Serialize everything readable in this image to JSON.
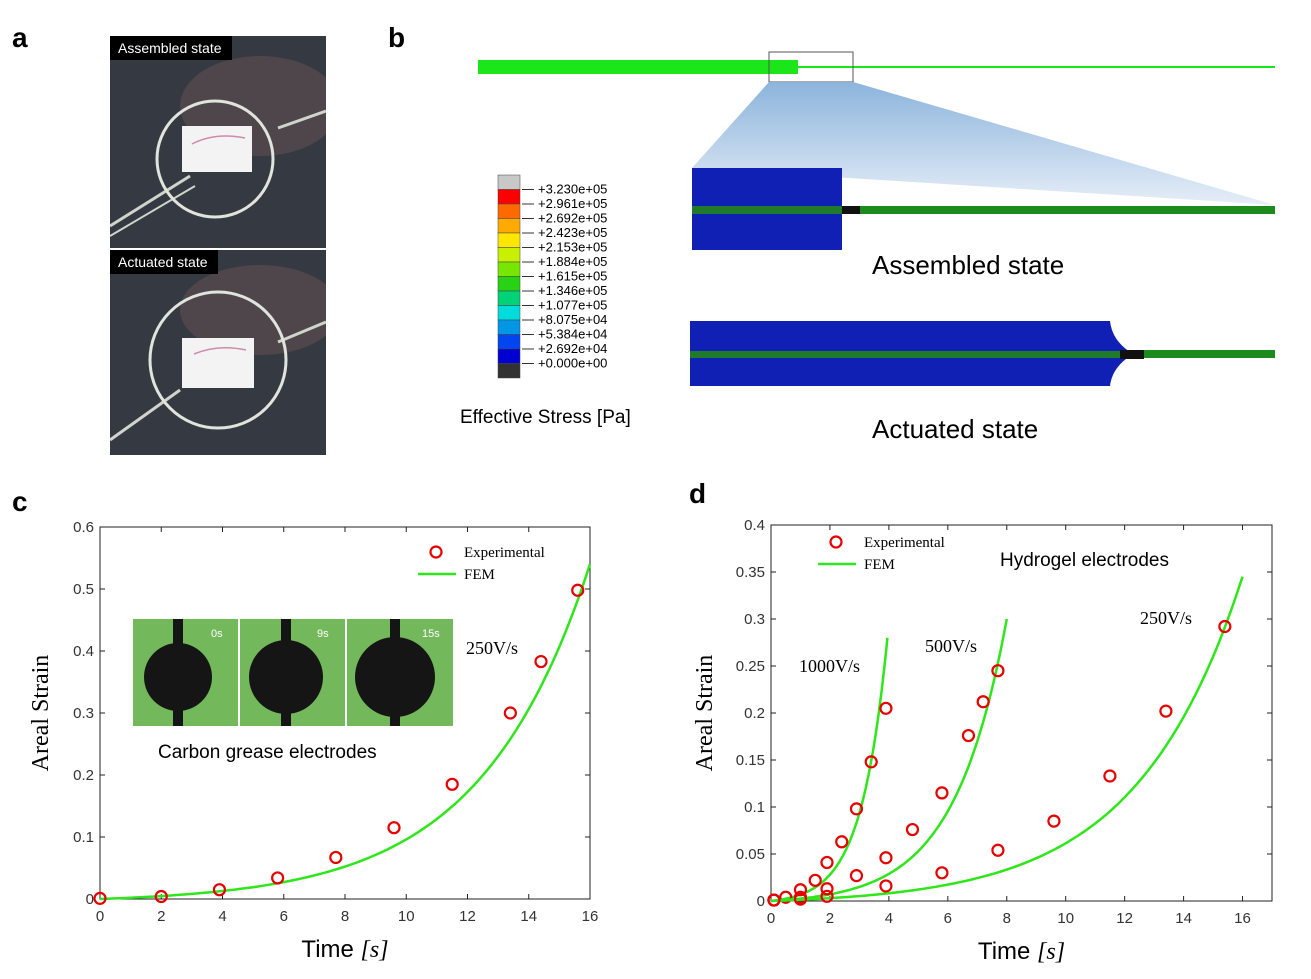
{
  "panel_letters": [
    "a",
    "b",
    "c",
    "d"
  ],
  "panel_a": {
    "photo_labels": [
      "Assembled state",
      "Actuated state"
    ]
  },
  "panel_b": {
    "legend_title": "Effective Stress [Pa]",
    "legend_values": [
      "+3.230e+05",
      "+2.961e+05",
      "+2.692e+05",
      "+2.423e+05",
      "+2.153e+05",
      "+1.884e+05",
      "+1.615e+05",
      "+1.346e+05",
      "+1.077e+05",
      "+8.075e+04",
      "+5.384e+04",
      "+2.692e+04",
      "+0.000e+00"
    ],
    "legend_colors": [
      "#c8c8c8",
      "#ff0000",
      "#ff6a00",
      "#ffaa00",
      "#ffe600",
      "#c8f000",
      "#78e600",
      "#28d214",
      "#00d278",
      "#00dcdc",
      "#0096e6",
      "#0046f0",
      "#0000d2",
      "#323232"
    ],
    "state_labels": [
      "Assembled state",
      "Actuated state"
    ]
  },
  "chart_data": [
    {
      "type": "scatter",
      "panel": "c",
      "xlabel_text": "Time ",
      "xlabel_math": "[s]",
      "ylabel": "Areal Strain",
      "xlim": [
        0,
        16
      ],
      "ylim": [
        0,
        0.6
      ],
      "x_ticks": [
        "0",
        "2",
        "4",
        "6",
        "8",
        "10",
        "12",
        "14",
        "16"
      ],
      "y_ticks": [
        "0",
        "0.1",
        "0.2",
        "0.3",
        "0.4",
        "0.5",
        "0.6"
      ],
      "legend": [
        "Experimental",
        "FEM"
      ],
      "legend_position": "top-right",
      "series": [
        {
          "label": "250V/s",
          "experimental": {
            "x": [
              0,
              2,
              3.9,
              5.8,
              7.7,
              9.6,
              11.5,
              13.4,
              14.4,
              15.6
            ],
            "y": [
              0.001,
              0.004,
              0.015,
              0.034,
              0.067,
              0.115,
              0.185,
              0.3,
              0.383,
              0.498
            ]
          },
          "fem": {
            "x_end": 16.0,
            "y_end": 0.54,
            "k": 0.279
          }
        }
      ],
      "inset": {
        "caption": "Carbon grease electrodes",
        "frame_labels": [
          "0s",
          "9s",
          "15s"
        ]
      },
      "colors": {
        "experimental": "#e60000",
        "fem": "#2ee61a"
      }
    },
    {
      "type": "scatter",
      "panel": "d",
      "xlabel_text": "Time ",
      "xlabel_math": "[s]",
      "ylabel": "Areal Strain",
      "xlim": [
        0,
        17
      ],
      "ylim": [
        0,
        0.4
      ],
      "x_ticks": [
        "0",
        "2",
        "4",
        "6",
        "8",
        "10",
        "12",
        "14",
        "16"
      ],
      "y_ticks": [
        "0",
        "0.05",
        "0.1",
        "0.15",
        "0.2",
        "0.25",
        "0.3",
        "0.35",
        "0.4"
      ],
      "legend": [
        "Experimental",
        "FEM"
      ],
      "legend_position": "top-left",
      "annotation": "Hydrogel electrodes",
      "series": [
        {
          "label": "1000V/s",
          "experimental": {
            "x": [
              0.1,
              0.5,
              1.0,
              1.5,
              1.9,
              2.4,
              2.9,
              3.4,
              3.9
            ],
            "y": [
              0.001,
              0.004,
              0.012,
              0.022,
              0.041,
              0.063,
              0.098,
              0.148,
              0.205
            ]
          },
          "fem": {
            "x_end": 3.95,
            "y_end": 0.28,
            "k": 1.13
          }
        },
        {
          "label": "500V/s",
          "experimental": {
            "x": [
              0.1,
              1.0,
              1.9,
              2.9,
              3.9,
              4.8,
              5.8,
              6.7,
              7.2,
              7.7
            ],
            "y": [
              0.001,
              0.004,
              0.013,
              0.027,
              0.046,
              0.076,
              0.115,
              0.176,
              0.212,
              0.245
            ]
          },
          "fem": {
            "x_end": 8.0,
            "y_end": 0.3,
            "k": 0.56
          }
        },
        {
          "label": "250V/s",
          "experimental": {
            "x": [
              0.1,
              1.0,
              1.9,
              3.9,
              5.8,
              7.7,
              9.6,
              11.5,
              13.4,
              15.4
            ],
            "y": [
              0.001,
              0.002,
              0.005,
              0.016,
              0.03,
              0.054,
              0.085,
              0.133,
              0.202,
              0.292
            ]
          },
          "fem": {
            "x_end": 16.0,
            "y_end": 0.345,
            "k": 0.279
          }
        }
      ],
      "colors": {
        "experimental": "#e60000",
        "fem": "#2ee61a"
      }
    }
  ]
}
